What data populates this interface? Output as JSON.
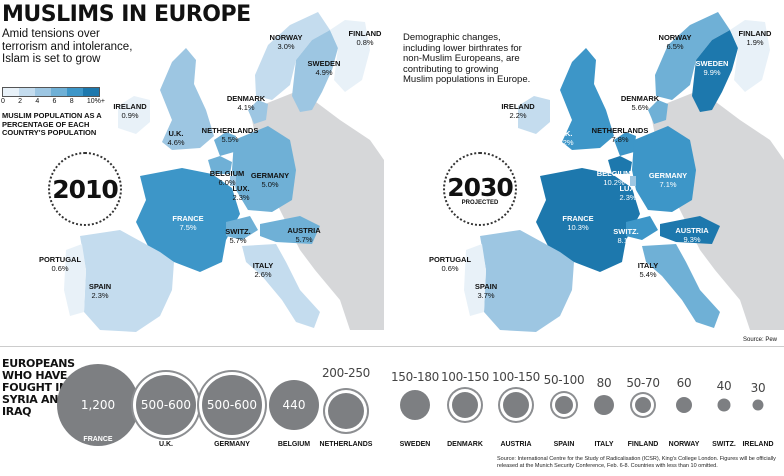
{
  "title": "MUSLIMS IN EUROPE",
  "subtitle": "Amid tensions over terrorism and intolerance, Islam is set to grow",
  "legend": {
    "ticks": [
      "0",
      "2",
      "4",
      "6",
      "8",
      "10%+"
    ],
    "caption": "MUSLIM POPULATION AS A PERCENTAGE OF EACH COUNTRY'S POPULATION",
    "colors": [
      "#e8f1f8",
      "#c4dcee",
      "#9dc6e2",
      "#6fb0d6",
      "#3d96c8",
      "#1d78ad"
    ]
  },
  "map2010": {
    "year": "2010",
    "countries": [
      {
        "name": "NORWAY",
        "value": "3.0%"
      },
      {
        "name": "FINLAND",
        "value": "0.8%"
      },
      {
        "name": "SWEDEN",
        "value": "4.9%"
      },
      {
        "name": "IRELAND",
        "value": "0.9%"
      },
      {
        "name": "DENMARK",
        "value": "4.1%"
      },
      {
        "name": "U.K.",
        "value": "4.6%"
      },
      {
        "name": "NETHERLANDS",
        "value": "5.5%"
      },
      {
        "name": "BELGIUM",
        "value": "6.0%"
      },
      {
        "name": "GERMANY",
        "value": "5.0%"
      },
      {
        "name": "LUX.",
        "value": "2.3%"
      },
      {
        "name": "FRANCE",
        "value": "7.5%"
      },
      {
        "name": "SWITZ.",
        "value": "5.7%"
      },
      {
        "name": "AUSTRIA",
        "value": "5.7%"
      },
      {
        "name": "PORTUGAL",
        "value": "0.6%"
      },
      {
        "name": "ITALY",
        "value": "2.6%"
      },
      {
        "name": "SPAIN",
        "value": "2.3%"
      }
    ]
  },
  "map2030": {
    "year": "2030",
    "projected": "PROJECTED",
    "description": "Demographic changes, including lower birthrates for non-Muslim Europeans, are contributing to growing Muslim populations in Europe.",
    "countries": [
      {
        "name": "NORWAY",
        "value": "6.5%"
      },
      {
        "name": "FINLAND",
        "value": "1.9%"
      },
      {
        "name": "SWEDEN",
        "value": "9.9%"
      },
      {
        "name": "IRELAND",
        "value": "2.2%"
      },
      {
        "name": "DENMARK",
        "value": "5.6%"
      },
      {
        "name": "U.K.",
        "value": "8.2%"
      },
      {
        "name": "NETHERLANDS",
        "value": "7.8%"
      },
      {
        "name": "BELGIUM",
        "value": "10.2%"
      },
      {
        "name": "GERMANY",
        "value": "7.1%"
      },
      {
        "name": "LUX.",
        "value": "2.3%"
      },
      {
        "name": "FRANCE",
        "value": "10.3%"
      },
      {
        "name": "SWITZ.",
        "value": "8.1%"
      },
      {
        "name": "AUSTRIA",
        "value": "9.3%"
      },
      {
        "name": "PORTUGAL",
        "value": "0.6%"
      },
      {
        "name": "ITALY",
        "value": "5.4%"
      },
      {
        "name": "SPAIN",
        "value": "3.7%"
      }
    ]
  },
  "source_map": "Source: Pew",
  "fighters": {
    "heading": "EUROPEANS WHO HAVE FOUGHT IN SYRIA AND IRAQ",
    "items": [
      {
        "country": "FRANCE",
        "value": "1,200",
        "est": 1200
      },
      {
        "country": "U.K.",
        "value": "500-600",
        "est": 550
      },
      {
        "country": "GERMANY",
        "value": "500-600",
        "est": 550
      },
      {
        "country": "BELGIUM",
        "value": "440",
        "est": 440
      },
      {
        "country": "NETHERLANDS",
        "value": "200-250",
        "est": 225
      },
      {
        "country": "SWEDEN",
        "value": "150-180",
        "est": 165
      },
      {
        "country": "DENMARK",
        "value": "100-150",
        "est": 125
      },
      {
        "country": "AUSTRIA",
        "value": "100-150",
        "est": 125
      },
      {
        "country": "SPAIN",
        "value": "50-100",
        "est": 75
      },
      {
        "country": "ITALY",
        "value": "80",
        "est": 80
      },
      {
        "country": "FINLAND",
        "value": "50-70",
        "est": 60
      },
      {
        "country": "NORWAY",
        "value": "60",
        "est": 60
      },
      {
        "country": "SWITZ.",
        "value": "40",
        "est": 40
      },
      {
        "country": "IRELAND",
        "value": "30",
        "est": 30
      }
    ],
    "footnote": "Source: International Centre for the Study of Radicalisation (ICSR), King's College London. Figures will be officially released at the Munich Security Conference, Feb. 6-8. Countries with less than 10 omitted."
  }
}
